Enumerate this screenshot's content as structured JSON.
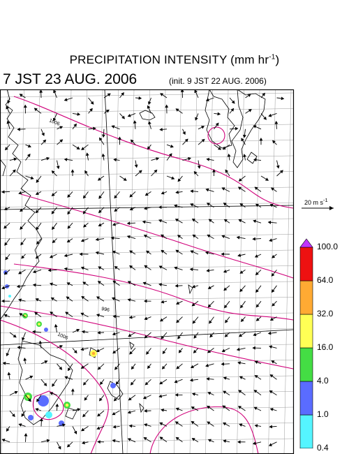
{
  "title_main": "PRECIPITATION INTENSITY (mm hr",
  "title_exp": "-1",
  "title_close": ")",
  "valid_time": "7 JST 23 AUG. 2006",
  "init_time": "(init. 9 JST 22 AUG. 2006)",
  "reference_vector": {
    "label": "20 m s",
    "exp": "-1"
  },
  "isobars": [
    {
      "label": "1006"
    },
    {
      "label": "996"
    },
    {
      "label": "1006"
    }
  ],
  "colorbar": {
    "levels": [
      "0.4",
      "1.0",
      "4.0",
      "16.0",
      "32.0",
      "64.0",
      "100.0"
    ],
    "colors": [
      "#55f5ff",
      "#5a6cff",
      "#44dd44",
      "#ffff55",
      "#ffaa33",
      "#ee1111",
      "#c033ff"
    ]
  },
  "colors": {
    "grid": "#9a9a9a",
    "coast": "#000000",
    "isobar": "#d0007a",
    "vectors": "#000000"
  }
}
